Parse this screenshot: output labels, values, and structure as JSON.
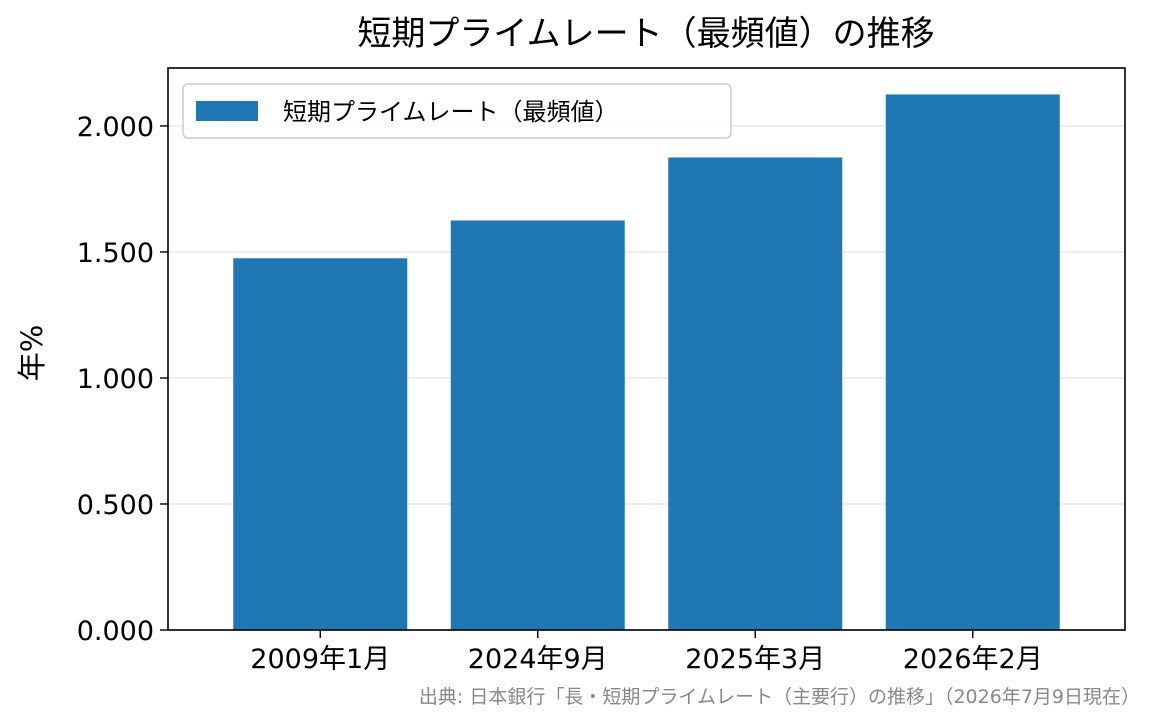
{
  "chart_data": {
    "type": "bar",
    "title": "短期プライムレート（最頻値）の推移",
    "xlabel": "",
    "ylabel": "年%",
    "categories": [
      "2009年1月",
      "2024年9月",
      "2025年3月",
      "2026年2月"
    ],
    "series": [
      {
        "name": "短期プライムレート（最頻値）",
        "values": [
          1.475,
          1.625,
          1.875,
          2.125
        ],
        "color": "#1f77b4"
      }
    ],
    "ylim": [
      0,
      2.23
    ],
    "yticks": [
      0,
      0.5,
      1.0,
      1.5,
      2.0
    ],
    "ytick_labels": [
      "0.000",
      "0.500",
      "1.000",
      "1.500",
      "2.000"
    ],
    "grid": "y",
    "legend_position": "top-left",
    "source": "出典: 日本銀行「長・短期プライムレート（主要行）の推移」（2026年7月9日現在）"
  }
}
